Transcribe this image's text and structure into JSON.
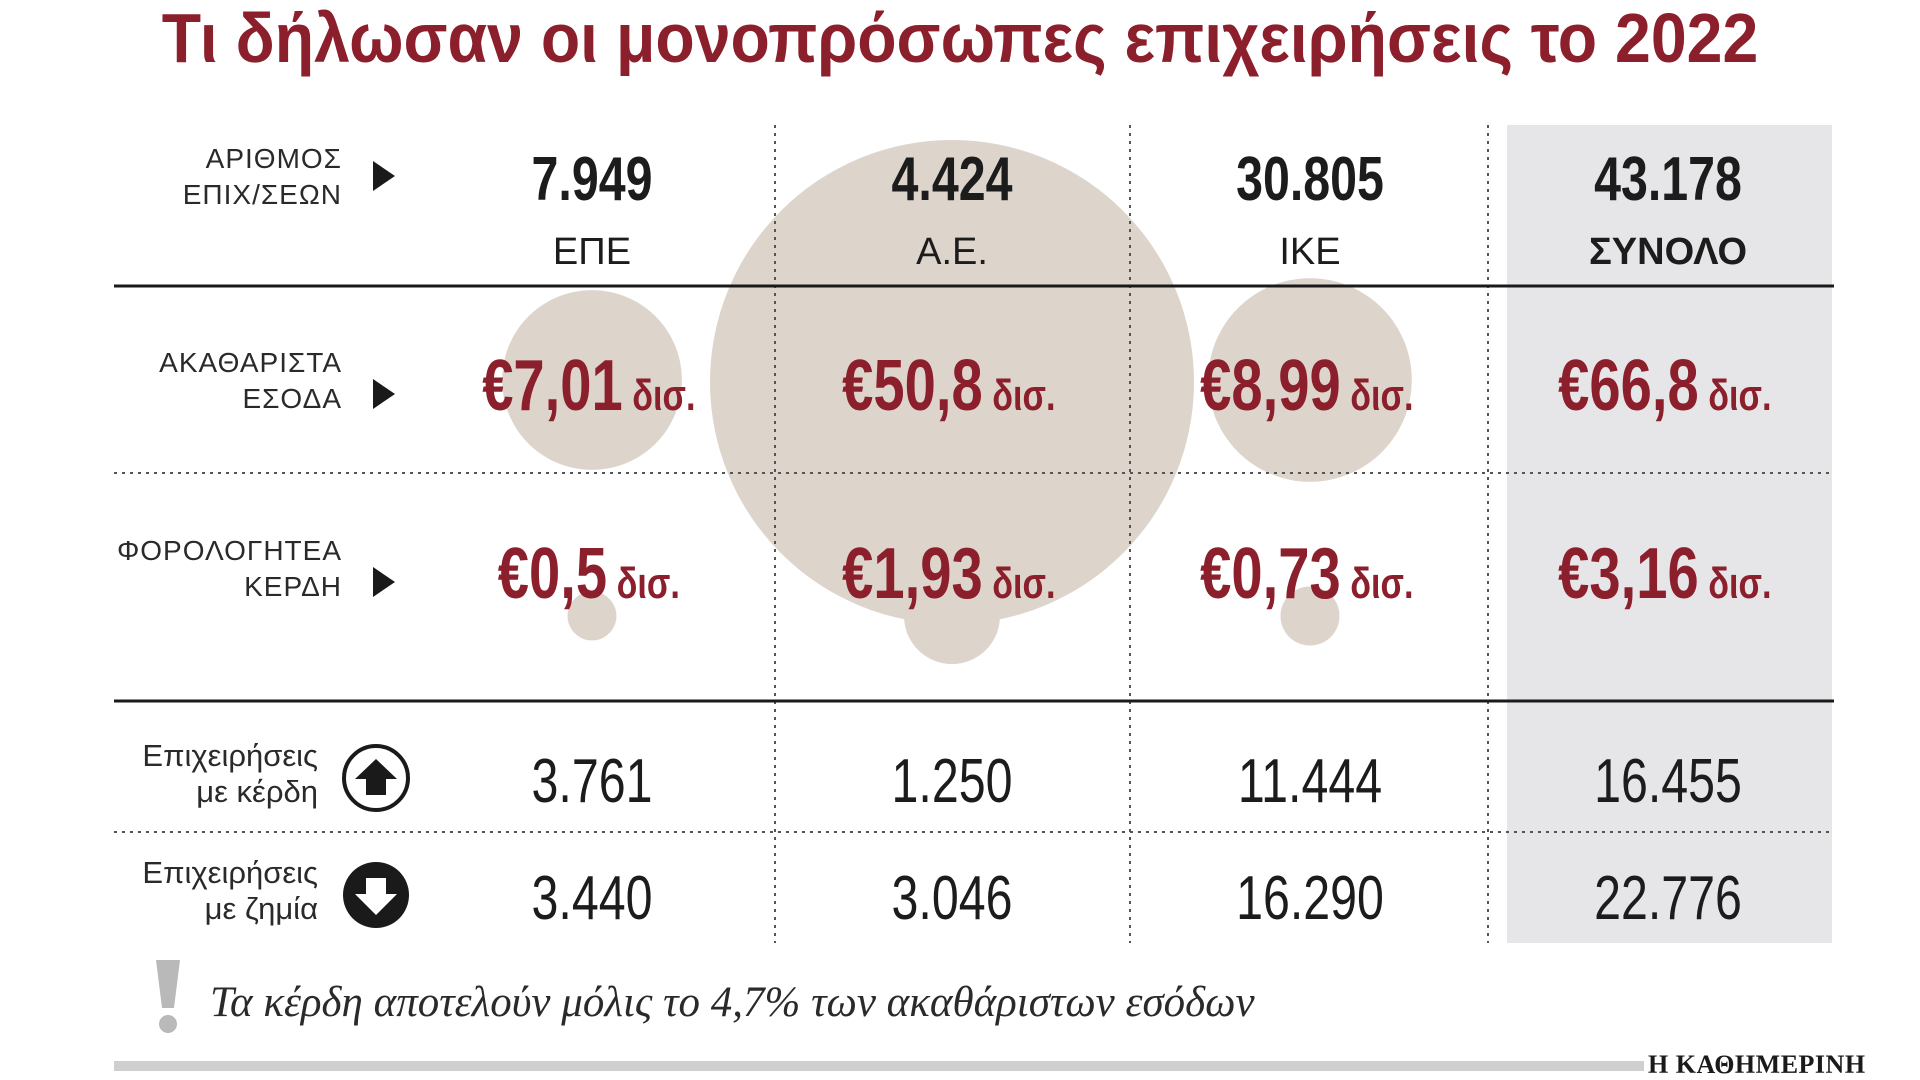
{
  "title": "Τι δήλωσαν οι μονοπρόσωπες επιχειρήσεις το 2022",
  "footnote": "Τα κέρδη αποτελούν μόλις το 4,7% των ακαθάριστων εσόδων",
  "brand": "Η ΚΑΘΗΜΕΡΙΝΗ",
  "colors": {
    "accent": "#8c1f2c",
    "bubble": "#ddd4cb",
    "total_bg": "#e6e6e8",
    "text": "#1c1c1c"
  },
  "icons": {
    "row_marker": "triangle-right-icon",
    "up": "arrow-up-circle-icon",
    "down": "arrow-down-circle-icon",
    "note": "exclamation-icon"
  },
  "chart_data": {
    "type": "table",
    "columns": [
      "ΕΠΕ",
      "Α.Ε.",
      "ΙΚΕ",
      "ΣΥΝΟΛΟ"
    ],
    "rows": [
      {
        "label": [
          "ΑΡΙΘΜΟΣ",
          "ΕΠΙΧ/ΣΕΩΝ"
        ],
        "values": [
          "7.949",
          "4.424",
          "30.805",
          "43.178"
        ]
      },
      {
        "label": [
          "ΑΚΑΘΑΡΙΣΤΑ",
          "ΕΣΟΔΑ"
        ],
        "values": [
          "€7,01",
          "€50,8",
          "€8,99",
          "€66,8"
        ],
        "unit": "δισ.",
        "numeric": [
          7.01,
          50.8,
          8.99,
          66.8
        ]
      },
      {
        "label": [
          "ΦΟΡΟΛΟΓΗΤΕΑ",
          "ΚΕΡΔΗ"
        ],
        "values": [
          "€0,5",
          "€1,93",
          "€0,73",
          "€3,16"
        ],
        "unit": "δισ.",
        "numeric": [
          0.5,
          1.93,
          0.73,
          3.16
        ]
      },
      {
        "label": [
          "Επιχειρήσεις",
          "με κέρδη"
        ],
        "values": [
          "3.761",
          "1.250",
          "11.444",
          "16.455"
        ]
      },
      {
        "label": [
          "Επιχειρήσεις",
          "με ζημία"
        ],
        "values": [
          "3.440",
          "3.046",
          "16.290",
          "22.776"
        ]
      }
    ]
  }
}
